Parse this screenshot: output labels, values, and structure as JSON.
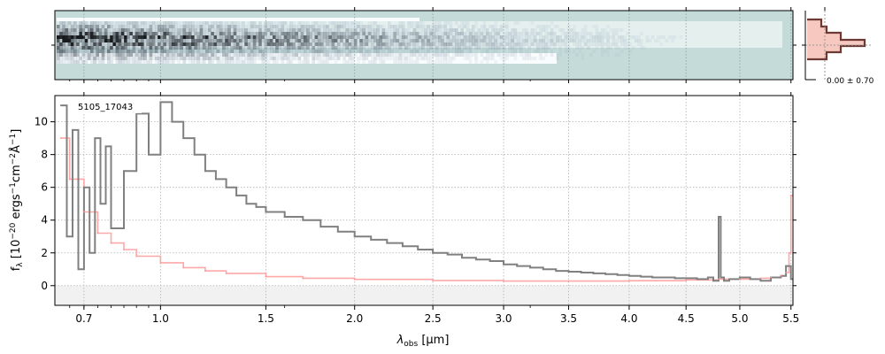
{
  "chart_data": {
    "type": "line",
    "object_label": "5105_17043",
    "xlabel_main": "λ",
    "xlabel_sub": "obs",
    "xlabel_unit": " [μm]",
    "ylabel_f": "f",
    "ylabel_sub": "λ",
    "ylabel_rest": " [10",
    "ylabel_e1": "−20",
    "ylabel_t1": " ergs",
    "ylabel_e2": "−1",
    "ylabel_t2": "cm",
    "ylabel_e3": "−2",
    "ylabel_t3": "Å",
    "ylabel_e4": "−1",
    "ylabel_end": "]",
    "inset_label": "0.00 ± 0.70",
    "xticks": [
      0.7,
      1.0,
      1.5,
      2.0,
      2.5,
      3.0,
      3.5,
      4.0,
      4.5,
      5.0,
      5.5
    ],
    "xtick_labels": [
      "0.7",
      "1.0",
      "1.5",
      "2.0",
      "2.5",
      "3.0",
      "3.5",
      "4.0",
      "4.5",
      "5.0",
      "5.5"
    ],
    "xlim": [
      0.6,
      5.52
    ],
    "yticks": [
      0,
      2,
      4,
      6,
      8,
      10
    ],
    "ytick_labels": [
      "0",
      "2",
      "4",
      "6",
      "8",
      "10"
    ],
    "ylim": [
      -1.2,
      11.6
    ],
    "grid": true,
    "colors": {
      "flux": "#808080",
      "error": "#ff9999",
      "spec2d_bg": "#c4dbd9",
      "spec2d_dark": "#1e2a45",
      "profile_line": "#6b3a32",
      "profile_fill": "#f6c8c0"
    },
    "series": [
      {
        "kind": "flux",
        "x": [
          0.62,
          0.64,
          0.66,
          0.68,
          0.7,
          0.72,
          0.74,
          0.76,
          0.78,
          0.8,
          0.85,
          0.9,
          0.95,
          1.0,
          1.05,
          1.1,
          1.15,
          1.2,
          1.25,
          1.3,
          1.35,
          1.4,
          1.45,
          1.5,
          1.6,
          1.7,
          1.8,
          1.9,
          2.0,
          2.1,
          2.2,
          2.3,
          2.4,
          2.5,
          2.6,
          2.7,
          2.8,
          2.9,
          3.0,
          3.1,
          3.2,
          3.3,
          3.4,
          3.5,
          3.6,
          3.7,
          3.8,
          3.9,
          4.0,
          4.1,
          4.2,
          4.3,
          4.4,
          4.5,
          4.6,
          4.7,
          4.75,
          4.8,
          4.82,
          4.85,
          4.9,
          5.0,
          5.1,
          5.2,
          5.3,
          5.4,
          5.45,
          5.5
        ],
        "y": [
          11.0,
          3.0,
          9.5,
          1.0,
          6.0,
          2.0,
          9.0,
          5.0,
          8.5,
          3.5,
          7.0,
          10.5,
          8.0,
          11.2,
          10.0,
          9.0,
          8.0,
          7.0,
          6.5,
          6.0,
          5.5,
          5.0,
          4.8,
          4.5,
          4.2,
          4.0,
          3.6,
          3.3,
          3.0,
          2.8,
          2.6,
          2.4,
          2.2,
          2.0,
          1.9,
          1.7,
          1.6,
          1.5,
          1.3,
          1.2,
          1.1,
          1.0,
          0.9,
          0.85,
          0.8,
          0.75,
          0.7,
          0.65,
          0.6,
          0.55,
          0.5,
          0.5,
          0.45,
          0.45,
          0.4,
          0.5,
          0.3,
          4.2,
          0.5,
          0.3,
          0.4,
          0.5,
          0.4,
          0.3,
          0.5,
          0.6,
          1.2,
          0.4
        ]
      },
      {
        "kind": "error",
        "x": [
          0.62,
          0.65,
          0.7,
          0.75,
          0.8,
          0.85,
          0.9,
          1.0,
          1.1,
          1.2,
          1.3,
          1.5,
          1.7,
          2.0,
          2.5,
          3.0,
          3.5,
          4.0,
          4.5,
          4.8,
          5.0,
          5.2,
          5.3,
          5.4,
          5.45,
          5.48,
          5.5
        ],
        "y": [
          9.0,
          6.5,
          4.5,
          3.2,
          2.6,
          2.2,
          1.8,
          1.4,
          1.1,
          0.9,
          0.75,
          0.55,
          0.45,
          0.38,
          0.32,
          0.28,
          0.28,
          0.3,
          0.35,
          0.4,
          0.4,
          0.45,
          0.5,
          0.6,
          0.8,
          2.0,
          5.5
        ]
      }
    ]
  }
}
